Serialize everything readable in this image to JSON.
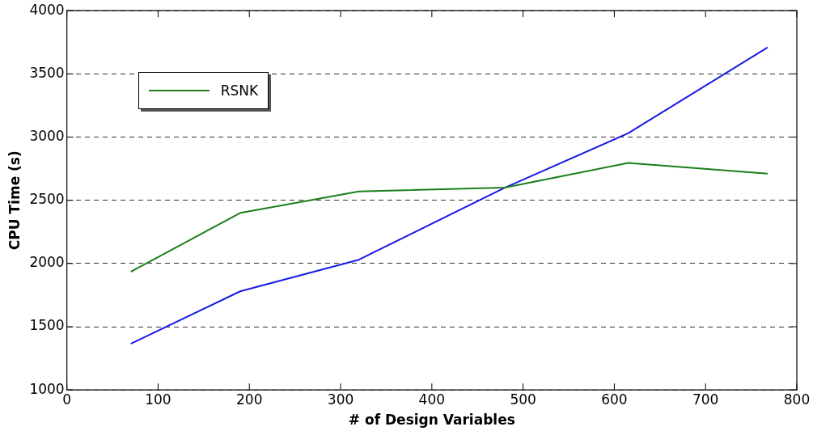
{
  "chart_data": {
    "type": "line",
    "xlabel": "# of Design Variables",
    "ylabel": "CPU Time (s)",
    "x": [
      70,
      190,
      320,
      480,
      615,
      768
    ],
    "series": [
      {
        "name": "RSNK",
        "color": "#1a7f1a",
        "values": [
          1935,
          2400,
          2570,
          2600,
          2795,
          2710
        ]
      },
      {
        "color": "#1a1ae6",
        "values": [
          1365,
          1780,
          2030,
          2600,
          3030,
          3710
        ]
      }
    ],
    "xlim": [
      0,
      800
    ],
    "xticks": [
      0,
      100,
      200,
      300,
      400,
      500,
      600,
      700,
      800
    ],
    "ylim": [
      1000,
      4000
    ],
    "yticks": [
      1000,
      1500,
      2000,
      2500,
      3000,
      3500,
      4000
    ],
    "grid": "y",
    "legend": "top left",
    "marker": "none",
    "line_style": "solid"
  }
}
